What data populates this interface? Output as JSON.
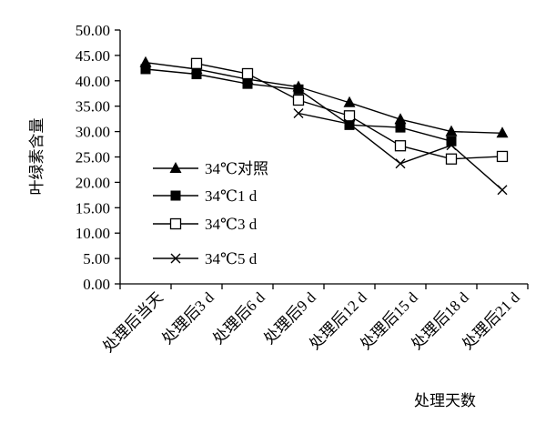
{
  "chart_data": {
    "type": "line",
    "title": "",
    "xlabel": "处理天数",
    "ylabel": "叶绿素含量",
    "ylim": [
      0,
      50
    ],
    "y_ticks": [
      "0.00",
      "5.00",
      "10.00",
      "15.00",
      "20.00",
      "25.00",
      "30.00",
      "35.00",
      "40.00",
      "45.00",
      "50.00"
    ],
    "categories": [
      "处理后当天",
      "处理后3 d",
      "处理后6 d",
      "处理后9 d",
      "处理后12 d",
      "处理后15 d",
      "处理后18 d",
      "处理后21 d"
    ],
    "grid": false,
    "legend_position": "left",
    "series": [
      {
        "name": "34℃对照",
        "marker": "triangle",
        "values": [
          43.6,
          42.3,
          40.3,
          38.8,
          35.7,
          32.4,
          30.0,
          29.7
        ]
      },
      {
        "name": "34℃1 d",
        "marker": "square-filled",
        "values": [
          42.3,
          41.3,
          39.4,
          38.3,
          31.3,
          30.8,
          28.1,
          null
        ]
      },
      {
        "name": "34℃3 d",
        "marker": "square-open",
        "values": [
          null,
          43.4,
          41.4,
          36.2,
          33.1,
          27.2,
          24.6,
          25.1
        ]
      },
      {
        "name": "34℃5 d",
        "marker": "x",
        "values": [
          null,
          null,
          null,
          33.6,
          31.5,
          23.7,
          27.3,
          18.5
        ]
      }
    ]
  }
}
